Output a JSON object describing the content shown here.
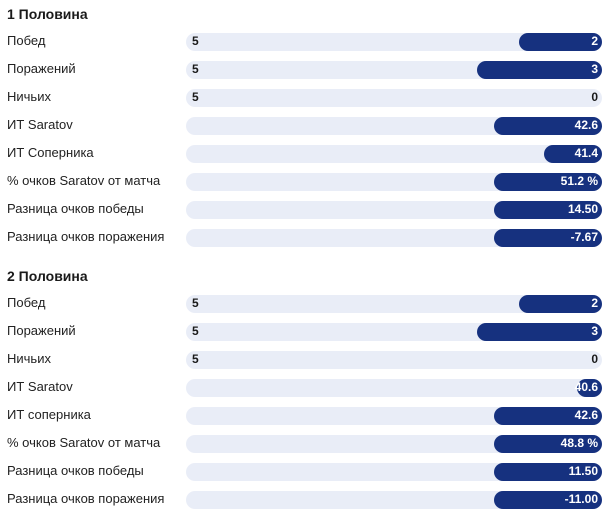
{
  "sections": [
    {
      "title": "1 Половина",
      "rows": [
        {
          "label": "Побед",
          "left": "5",
          "right": "2",
          "fill": 0.2
        },
        {
          "label": "Поражений",
          "left": "5",
          "right": "3",
          "fill": 0.3
        },
        {
          "label": "Ничьих",
          "left": "5",
          "right": "0",
          "fill": 0
        },
        {
          "label": "ИТ Saratov",
          "left": "",
          "right": "42.6",
          "fill": 0.26
        },
        {
          "label": "ИТ Соперника",
          "left": "",
          "right": "41.4",
          "fill": 0.14
        },
        {
          "label": "% очков Saratov от матча",
          "left": "",
          "right": "51.2 %",
          "fill": 0.26
        },
        {
          "label": "Разница очков победы",
          "left": "",
          "right": "14.50",
          "fill": 0.26
        },
        {
          "label": "Разница очков поражения",
          "left": "",
          "right": "-7.67",
          "fill": 0.26
        }
      ]
    },
    {
      "title": "2 Половина",
      "rows": [
        {
          "label": "Побед",
          "left": "5",
          "right": "2",
          "fill": 0.2
        },
        {
          "label": "Поражений",
          "left": "5",
          "right": "3",
          "fill": 0.3
        },
        {
          "label": "Ничьих",
          "left": "5",
          "right": "0",
          "fill": 0
        },
        {
          "label": "ИТ Saratov",
          "left": "",
          "right": "40.6",
          "fill": 0.06
        },
        {
          "label": "ИТ соперника",
          "left": "",
          "right": "42.6",
          "fill": 0.26
        },
        {
          "label": "% очков Saratov от матча",
          "left": "",
          "right": "48.8 %",
          "fill": 0.26
        },
        {
          "label": "Разница очков победы",
          "left": "",
          "right": "11.50",
          "fill": 0.26
        },
        {
          "label": "Разница очков поражения",
          "left": "",
          "right": "-11.00",
          "fill": 0.26
        }
      ]
    }
  ],
  "colors": {
    "fill": "#16317f",
    "track": "#e9edf7"
  }
}
